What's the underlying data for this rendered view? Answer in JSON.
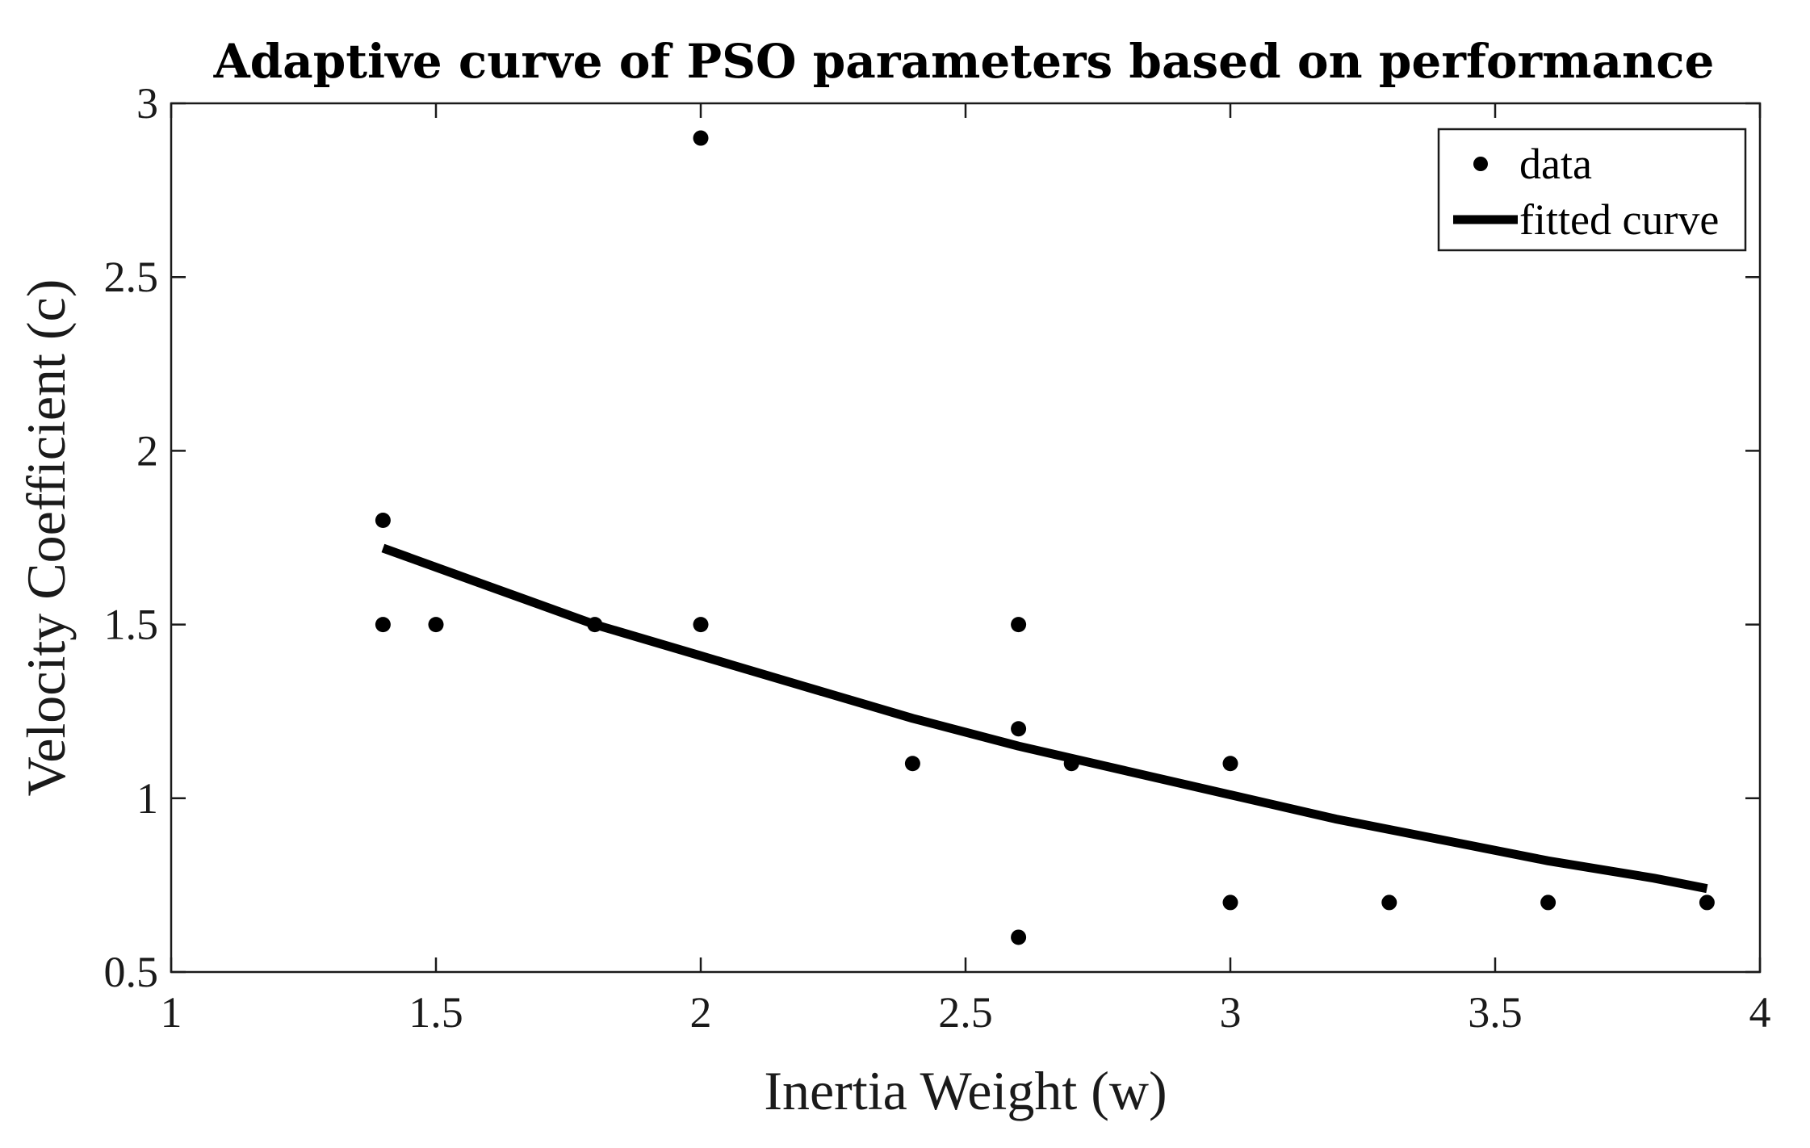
{
  "chart_data": {
    "type": "scatter",
    "title": "Adaptive curve of PSO parameters based on performance",
    "xlabel": "Inertia Weight (w)",
    "ylabel": "Velocity Coefficient (c)",
    "xlim": [
      1,
      4
    ],
    "ylim": [
      0.5,
      3
    ],
    "xticks": [
      1,
      1.5,
      2,
      2.5,
      3,
      3.5,
      4
    ],
    "xtick_labels": [
      "1",
      "1.5",
      "2",
      "2.5",
      "3",
      "3.5",
      "4"
    ],
    "yticks": [
      0.5,
      1,
      1.5,
      2,
      2.5,
      3
    ],
    "ytick_labels": [
      "0.5",
      "1",
      "1.5",
      "2",
      "2.5",
      "3"
    ],
    "grid": false,
    "legend_position": "top-right",
    "series": [
      {
        "name": "data",
        "kind": "scatter",
        "color": "#000000",
        "points": [
          {
            "x": 1.4,
            "y": 1.8
          },
          {
            "x": 1.4,
            "y": 1.5
          },
          {
            "x": 1.5,
            "y": 1.5
          },
          {
            "x": 1.8,
            "y": 1.5
          },
          {
            "x": 2.0,
            "y": 2.9
          },
          {
            "x": 2.0,
            "y": 1.5
          },
          {
            "x": 2.4,
            "y": 1.1
          },
          {
            "x": 2.6,
            "y": 1.5
          },
          {
            "x": 2.6,
            "y": 1.2
          },
          {
            "x": 2.6,
            "y": 0.6
          },
          {
            "x": 2.7,
            "y": 1.1
          },
          {
            "x": 3.0,
            "y": 1.1
          },
          {
            "x": 3.0,
            "y": 0.7
          },
          {
            "x": 3.3,
            "y": 0.7
          },
          {
            "x": 3.6,
            "y": 0.7
          },
          {
            "x": 3.9,
            "y": 0.7
          }
        ]
      },
      {
        "name": "fitted curve",
        "kind": "line",
        "color": "#000000",
        "points": [
          {
            "x": 1.4,
            "y": 1.72
          },
          {
            "x": 1.6,
            "y": 1.61
          },
          {
            "x": 1.8,
            "y": 1.5
          },
          {
            "x": 2.0,
            "y": 1.41
          },
          {
            "x": 2.2,
            "y": 1.32
          },
          {
            "x": 2.4,
            "y": 1.23
          },
          {
            "x": 2.6,
            "y": 1.15
          },
          {
            "x": 2.8,
            "y": 1.08
          },
          {
            "x": 3.0,
            "y": 1.01
          },
          {
            "x": 3.2,
            "y": 0.94
          },
          {
            "x": 3.4,
            "y": 0.88
          },
          {
            "x": 3.6,
            "y": 0.82
          },
          {
            "x": 3.8,
            "y": 0.77
          },
          {
            "x": 3.9,
            "y": 0.74
          }
        ]
      }
    ]
  }
}
